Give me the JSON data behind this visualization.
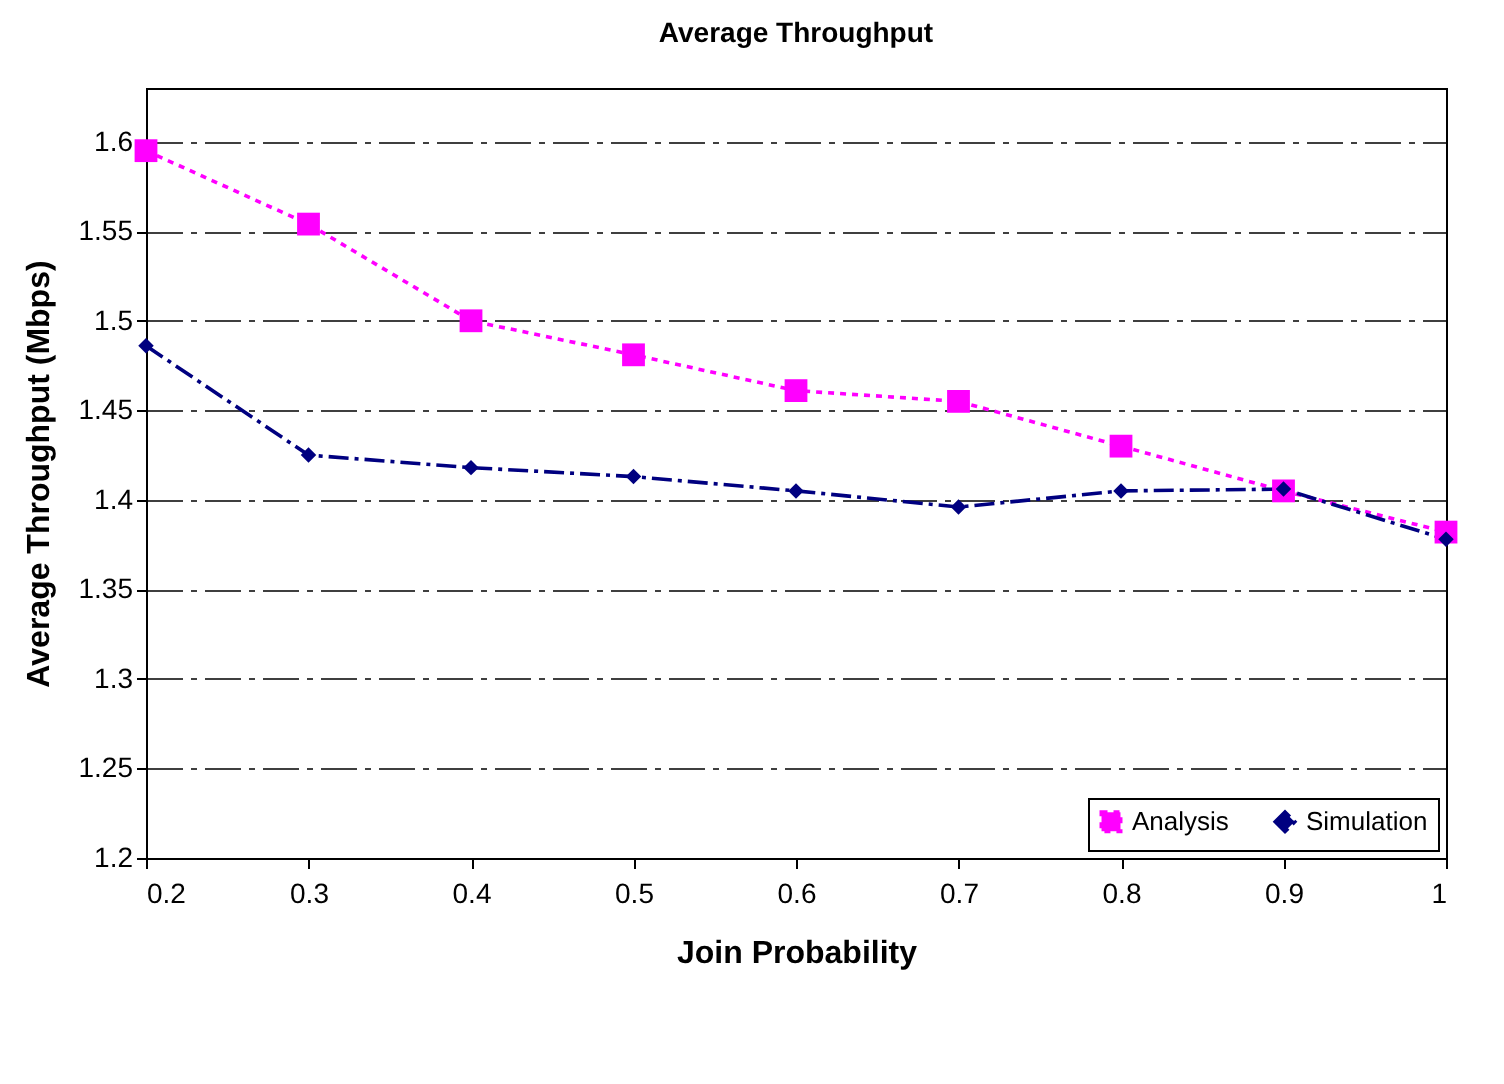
{
  "chart_data": {
    "type": "line",
    "title": "Average Throughput",
    "xlabel": "Join Probability",
    "ylabel": "Average Throughput (Mbps)",
    "x": [
      0.2,
      0.3,
      0.4,
      0.5,
      0.6,
      0.7,
      0.8,
      0.9,
      1
    ],
    "series": [
      {
        "name": "Analysis",
        "color": "#ff00ff",
        "marker": "square",
        "line_style": "dotted",
        "values": [
          1.595,
          1.554,
          1.5,
          1.481,
          1.461,
          1.455,
          1.43,
          1.405,
          1.382
        ]
      },
      {
        "name": "Simulation",
        "color": "#000080",
        "marker": "diamond",
        "line_style": "dashed",
        "values": [
          1.486,
          1.425,
          1.418,
          1.413,
          1.405,
          1.396,
          1.405,
          1.406,
          1.378
        ]
      }
    ],
    "xlim": [
      0.2,
      1
    ],
    "xticks": [
      0.2,
      0.3,
      0.4,
      0.5,
      0.6,
      0.7,
      0.8,
      0.9,
      1
    ],
    "ylim": [
      1.2,
      1.63
    ],
    "yticks": [
      1.2,
      1.25,
      1.3,
      1.35,
      1.4,
      1.45,
      1.5,
      1.55,
      1.6
    ],
    "grid": "y",
    "legend": "bottom right"
  }
}
